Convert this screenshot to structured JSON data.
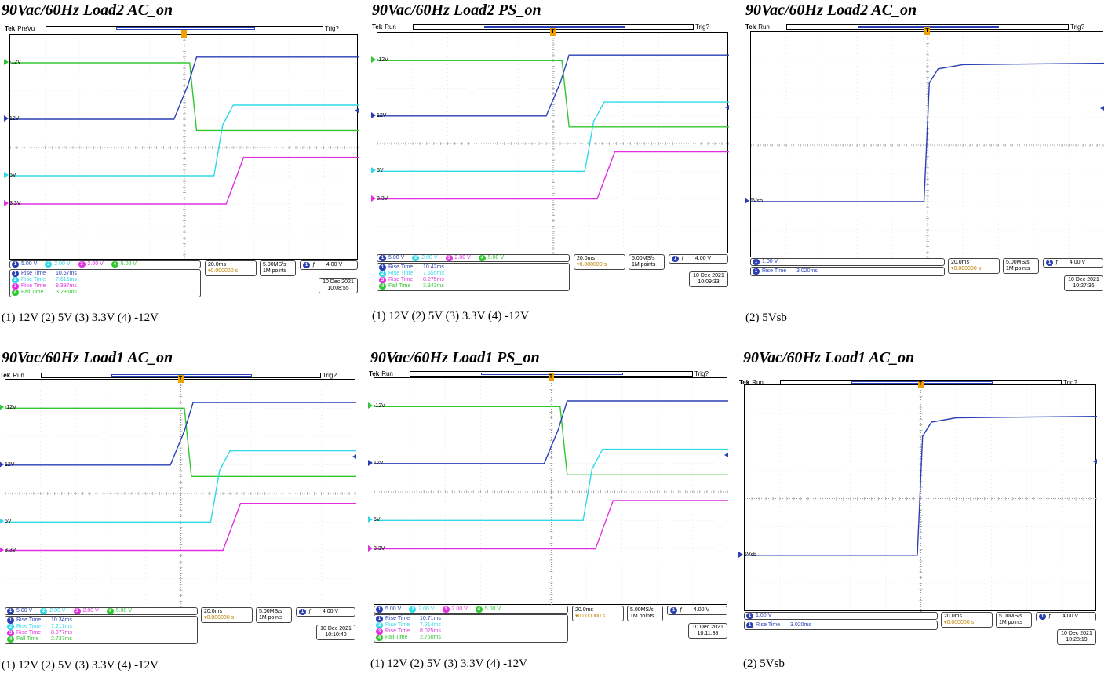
{
  "colors": {
    "ch1": "#2b3fb5",
    "ch2": "#30d8e8",
    "ch3": "#e030e0",
    "ch4": "#30c830",
    "grid": "#9a9a9a",
    "trig": "#f0a000"
  },
  "panels": [
    {
      "title": "90Vac/60Hz Load2 AC_on",
      "caption": "(1) 12V (2) 5V (3) 3.3V (4) -12V",
      "scope": {
        "brand": "Tek",
        "state": "PreVu",
        "trigger_status": "Trig?",
        "markers": [
          {
            "ch": "ch4",
            "label": "-12V"
          },
          {
            "ch": "ch1",
            "label": "12V"
          },
          {
            "ch": "ch2",
            "label": "5V"
          },
          {
            "ch": "ch3",
            "label": "3.3V"
          }
        ],
        "channels": [
          {
            "n": "1",
            "scale": "5.00 V",
            "cls": "ch1"
          },
          {
            "n": "2",
            "scale": "2.00 V",
            "cls": "ch2"
          },
          {
            "n": "3",
            "scale": "2.00 V",
            "cls": "ch3"
          },
          {
            "n": "4",
            "scale": "5.00 V",
            "cls": "ch4"
          }
        ],
        "measurements": [
          {
            "ch": "1",
            "label": "Rise Time",
            "value": "10.67ms",
            "cls": "ch1"
          },
          {
            "ch": "2",
            "label": "Rise Time",
            "value": "7.616ms",
            "cls": "ch2"
          },
          {
            "ch": "3",
            "label": "Rise Time",
            "value": "8.397ms",
            "cls": "ch3"
          },
          {
            "ch": "4",
            "label": "Fall Time",
            "value": "3.235ms",
            "cls": "ch4"
          }
        ],
        "timebase": "20.0ms",
        "trigger_offset": "▾0.000000 s",
        "sample_rate": "5.00MS/s",
        "record": "1M points",
        "trig_ch": "1",
        "trig_slope": "ƒ",
        "trig_level": "4.00 V",
        "date": "10 Dec 2021",
        "time": "10:08:55"
      }
    },
    {
      "title": "90Vac/60Hz Load2 PS_on",
      "caption": "(1) 12V (2) 5V (3) 3.3V (4) -12V",
      "scope": {
        "brand": "Tek",
        "state": "Run",
        "trigger_status": "Trig?",
        "markers": [
          {
            "ch": "ch4",
            "label": "-12V"
          },
          {
            "ch": "ch1",
            "label": "12V"
          },
          {
            "ch": "ch2",
            "label": "5V"
          },
          {
            "ch": "ch3",
            "label": "3.3V"
          }
        ],
        "channels": [
          {
            "n": "1",
            "scale": "5.00 V",
            "cls": "ch1"
          },
          {
            "n": "2",
            "scale": "2.00 V",
            "cls": "ch2"
          },
          {
            "n": "3",
            "scale": "2.00 V",
            "cls": "ch3"
          },
          {
            "n": "4",
            "scale": "5.00 V",
            "cls": "ch4"
          }
        ],
        "measurements": [
          {
            "ch": "1",
            "label": "Rise Time",
            "value": "10.42ms",
            "cls": "ch1"
          },
          {
            "ch": "2",
            "label": "Rise Time",
            "value": "7.555ms",
            "cls": "ch2"
          },
          {
            "ch": "3",
            "label": "Rise Time",
            "value": "8.275ms",
            "cls": "ch3"
          },
          {
            "ch": "4",
            "label": "Fall Time",
            "value": "3.343ms",
            "cls": "ch4"
          }
        ],
        "timebase": "20.0ms",
        "trigger_offset": "▾0.000000 s",
        "sample_rate": "5.00MS/s",
        "record": "1M points",
        "trig_ch": "1",
        "trig_slope": "ƒ",
        "trig_level": "4.00 V",
        "date": "10 Dec 2021",
        "time": "10:09:33"
      }
    },
    {
      "title": "90Vac/60Hz Load2 AC_on",
      "caption": "(2) 5Vsb",
      "scope": {
        "brand": "Tek",
        "state": "Run",
        "trigger_status": "Trig?",
        "markers": [
          {
            "ch": "ch1",
            "label": "5Vsb"
          }
        ],
        "channels": [
          {
            "n": "1",
            "scale": "1.00 V",
            "cls": "ch1"
          }
        ],
        "measurements": [
          {
            "ch": "1",
            "label": "Rise Time",
            "value": "3.020ms",
            "cls": "ch1"
          }
        ],
        "timebase": "20.0ms",
        "trigger_offset": "▾0.000000 s",
        "sample_rate": "5.00MS/s",
        "record": "1M points",
        "trig_ch": "1",
        "trig_slope": "ƒ",
        "trig_level": "4.00 V",
        "date": "10 Dec 2021",
        "time": "10:27:36"
      }
    },
    {
      "title": "90Vac/60Hz Load1 AC_on",
      "caption": "(1) 12V (2) 5V (3) 3.3V (4) -12V",
      "scope": {
        "brand": "Tek",
        "state": "Run",
        "trigger_status": "Trig?",
        "markers": [
          {
            "ch": "ch4",
            "label": "-12V"
          },
          {
            "ch": "ch1",
            "label": "12V"
          },
          {
            "ch": "ch2",
            "label": "5V"
          },
          {
            "ch": "ch3",
            "label": "3.3V"
          }
        ],
        "channels": [
          {
            "n": "1",
            "scale": "5.00 V",
            "cls": "ch1"
          },
          {
            "n": "2",
            "scale": "2.00 V",
            "cls": "ch2"
          },
          {
            "n": "3",
            "scale": "2.00 V",
            "cls": "ch3"
          },
          {
            "n": "4",
            "scale": "5.00 V",
            "cls": "ch4"
          }
        ],
        "measurements": [
          {
            "ch": "1",
            "label": "Rise Time",
            "value": "10.34ms",
            "cls": "ch1"
          },
          {
            "ch": "2",
            "label": "Rise Time",
            "value": "7.217ms",
            "cls": "ch2"
          },
          {
            "ch": "3",
            "label": "Rise Time",
            "value": "8.077ms",
            "cls": "ch3"
          },
          {
            "ch": "4",
            "label": "Fall Time",
            "value": "2.737ms",
            "cls": "ch4"
          }
        ],
        "timebase": "20.0ms",
        "trigger_offset": "▾0.000000 s",
        "sample_rate": "5.00MS/s",
        "record": "1M points",
        "trig_ch": "1",
        "trig_slope": "ƒ",
        "trig_level": "4.00 V",
        "date": "10 Dec 2021",
        "time": "10:10:40"
      }
    },
    {
      "title": "90Vac/60Hz Load1 PS_on",
      "caption": "(1) 12V (2) 5V (3) 3.3V (4) -12V",
      "scope": {
        "brand": "Tek",
        "state": "Run",
        "trigger_status": "Trig?",
        "markers": [
          {
            "ch": "ch4",
            "label": "-12V"
          },
          {
            "ch": "ch1",
            "label": "12V"
          },
          {
            "ch": "ch2",
            "label": "5V"
          },
          {
            "ch": "ch3",
            "label": "3.3V"
          }
        ],
        "channels": [
          {
            "n": "1",
            "scale": "5.00 V",
            "cls": "ch1"
          },
          {
            "n": "2",
            "scale": "2.00 V",
            "cls": "ch2"
          },
          {
            "n": "3",
            "scale": "2.00 V",
            "cls": "ch3"
          },
          {
            "n": "4",
            "scale": "5.00 V",
            "cls": "ch4"
          }
        ],
        "measurements": [
          {
            "ch": "1",
            "label": "Rise Time",
            "value": "10.71ms",
            "cls": "ch1"
          },
          {
            "ch": "2",
            "label": "Rise Time",
            "value": "7.214ms",
            "cls": "ch2"
          },
          {
            "ch": "3",
            "label": "Rise Time",
            "value": "8.025ms",
            "cls": "ch3"
          },
          {
            "ch": "4",
            "label": "Fall Time",
            "value": "2.760ms",
            "cls": "ch4"
          }
        ],
        "timebase": "20.0ms",
        "trigger_offset": "▾0.000000 s",
        "sample_rate": "5.00MS/s",
        "record": "1M points",
        "trig_ch": "1",
        "trig_slope": "ƒ",
        "trig_level": "4.00 V",
        "date": "10 Dec 2021",
        "time": "10:11:38"
      }
    },
    {
      "title": "90Vac/60Hz Load1 AC_on",
      "caption": "(2) 5Vsb",
      "scope": {
        "brand": "Tek",
        "state": "Run",
        "trigger_status": "Trig?",
        "markers": [
          {
            "ch": "ch1",
            "label": "5Vsb"
          }
        ],
        "channels": [
          {
            "n": "1",
            "scale": "1.00 V",
            "cls": "ch1"
          }
        ],
        "measurements": [
          {
            "ch": "1",
            "label": "Rise Time",
            "value": "3.020ms",
            "cls": "ch1"
          }
        ],
        "timebase": "20.0ms",
        "trigger_offset": "▾0.000000 s",
        "sample_rate": "5.00MS/s",
        "record": "1M points",
        "trig_ch": "1",
        "trig_slope": "ƒ",
        "trig_level": "4.00 V",
        "date": "10 Dec 2021",
        "time": "10:28:19"
      }
    }
  ],
  "chart_data": [
    {
      "type": "line",
      "title": "90Vac/60Hz Load2 AC_on",
      "x_unit": "divisions (20.0ms/div)",
      "xlim": [
        -5,
        5
      ],
      "ylim": [
        -4,
        4
      ],
      "series": [
        {
          "name": "-12V",
          "values": [
            [
              -5,
              3
            ],
            [
              0.15,
              3
            ],
            [
              0.35,
              0.6
            ],
            [
              5,
              0.6
            ]
          ]
        },
        {
          "name": "12V",
          "values": [
            [
              -5,
              1
            ],
            [
              -0.3,
              1
            ],
            [
              0.1,
              2.2
            ],
            [
              0.35,
              3.2
            ],
            [
              5,
              3.2
            ]
          ]
        },
        {
          "name": "5V",
          "values": [
            [
              -5,
              -1
            ],
            [
              0.85,
              -1
            ],
            [
              1.1,
              0.8
            ],
            [
              1.4,
              1.5
            ],
            [
              5,
              1.5
            ]
          ]
        },
        {
          "name": "3.3V",
          "values": [
            [
              -5,
              -2
            ],
            [
              1.2,
              -2
            ],
            [
              1.7,
              -0.35
            ],
            [
              5,
              -0.35
            ]
          ]
        }
      ]
    },
    {
      "type": "line",
      "title": "90Vac/60Hz Load2 PS_on",
      "x_unit": "divisions (20.0ms/div)",
      "xlim": [
        -5,
        5
      ],
      "ylim": [
        -4,
        4
      ],
      "series": [
        {
          "name": "-12V",
          "values": [
            [
              -5,
              3
            ],
            [
              0.25,
              3
            ],
            [
              0.45,
              0.6
            ],
            [
              5,
              0.6
            ]
          ]
        },
        {
          "name": "12V",
          "values": [
            [
              -5,
              1
            ],
            [
              -0.2,
              1
            ],
            [
              0.2,
              2.2
            ],
            [
              0.45,
              3.2
            ],
            [
              5,
              3.2
            ]
          ]
        },
        {
          "name": "5V",
          "values": [
            [
              -5,
              -1
            ],
            [
              0.9,
              -1
            ],
            [
              1.15,
              0.8
            ],
            [
              1.45,
              1.5
            ],
            [
              5,
              1.5
            ]
          ]
        },
        {
          "name": "3.3V",
          "values": [
            [
              -5,
              -2
            ],
            [
              1.25,
              -2
            ],
            [
              1.75,
              -0.3
            ],
            [
              5,
              -0.3
            ]
          ]
        }
      ]
    },
    {
      "type": "line",
      "title": "90Vac/60Hz Load2 AC_on",
      "x_unit": "divisions (20.0ms/div)",
      "xlim": [
        -5,
        5
      ],
      "ylim": [
        -4,
        4
      ],
      "series": [
        {
          "name": "5Vsb",
          "values": [
            [
              -5,
              -2
            ],
            [
              -0.1,
              -2
            ],
            [
              0.05,
              2.2
            ],
            [
              0.3,
              2.7
            ],
            [
              1,
              2.85
            ],
            [
              5,
              2.9
            ]
          ]
        }
      ]
    },
    {
      "type": "line",
      "title": "90Vac/60Hz Load1 AC_on",
      "x_unit": "divisions (20.0ms/div)",
      "xlim": [
        -5,
        5
      ],
      "ylim": [
        -4,
        4
      ],
      "series": [
        {
          "name": "-12V",
          "values": [
            [
              -5,
              3
            ],
            [
              0.1,
              3
            ],
            [
              0.3,
              0.6
            ],
            [
              5,
              0.6
            ]
          ]
        },
        {
          "name": "12V",
          "values": [
            [
              -5,
              1
            ],
            [
              -0.3,
              1
            ],
            [
              0.1,
              2.2
            ],
            [
              0.35,
              3.2
            ],
            [
              5,
              3.2
            ]
          ]
        },
        {
          "name": "5V",
          "values": [
            [
              -5,
              -1
            ],
            [
              0.85,
              -1
            ],
            [
              1.1,
              0.8
            ],
            [
              1.4,
              1.5
            ],
            [
              5,
              1.5
            ]
          ]
        },
        {
          "name": "3.3V",
          "values": [
            [
              -5,
              -2
            ],
            [
              1.2,
              -2
            ],
            [
              1.7,
              -0.35
            ],
            [
              5,
              -0.35
            ]
          ]
        }
      ]
    },
    {
      "type": "line",
      "title": "90Vac/60Hz Load1 PS_on",
      "x_unit": "divisions (20.0ms/div)",
      "xlim": [
        -5,
        5
      ],
      "ylim": [
        -4,
        4
      ],
      "series": [
        {
          "name": "-12V",
          "values": [
            [
              -5,
              3
            ],
            [
              0.25,
              3
            ],
            [
              0.45,
              0.6
            ],
            [
              5,
              0.6
            ]
          ]
        },
        {
          "name": "12V",
          "values": [
            [
              -5,
              1
            ],
            [
              -0.2,
              1
            ],
            [
              0.2,
              2.2
            ],
            [
              0.45,
              3.2
            ],
            [
              5,
              3.2
            ]
          ]
        },
        {
          "name": "5V",
          "values": [
            [
              -5,
              -1
            ],
            [
              0.9,
              -1
            ],
            [
              1.15,
              0.8
            ],
            [
              1.45,
              1.5
            ],
            [
              5,
              1.5
            ]
          ]
        },
        {
          "name": "3.3V",
          "values": [
            [
              -5,
              -2
            ],
            [
              1.25,
              -2
            ],
            [
              1.75,
              -0.3
            ],
            [
              5,
              -0.3
            ]
          ]
        }
      ]
    },
    {
      "type": "line",
      "title": "90Vac/60Hz Load1 AC_on",
      "x_unit": "divisions (20.0ms/div)",
      "xlim": [
        -5,
        5
      ],
      "ylim": [
        -4,
        4
      ],
      "series": [
        {
          "name": "5Vsb",
          "values": [
            [
              -5,
              -2
            ],
            [
              -0.1,
              -2
            ],
            [
              0.05,
              2.2
            ],
            [
              0.3,
              2.7
            ],
            [
              1,
              2.85
            ],
            [
              5,
              2.9
            ]
          ]
        }
      ]
    }
  ]
}
